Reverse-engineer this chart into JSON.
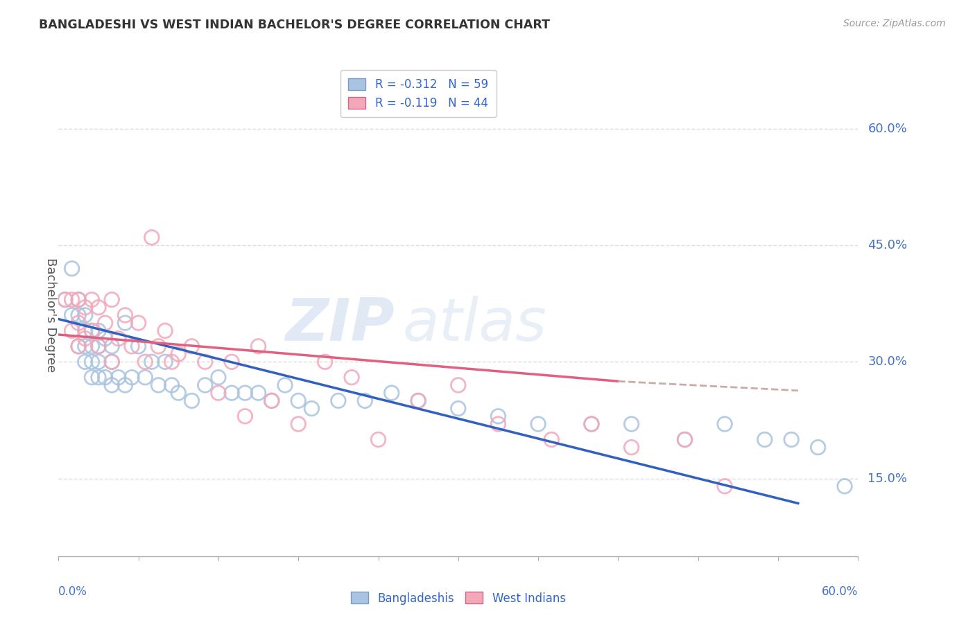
{
  "title": "BANGLADESHI VS WEST INDIAN BACHELOR'S DEGREE CORRELATION CHART",
  "source": "Source: ZipAtlas.com",
  "ylabel": "Bachelor's Degree",
  "yticks": [
    0.15,
    0.3,
    0.45,
    0.6
  ],
  "ytick_labels": [
    "15.0%",
    "30.0%",
    "45.0%",
    "60.0%"
  ],
  "xlim": [
    0.0,
    0.6
  ],
  "ylim": [
    0.05,
    0.67
  ],
  "legend_entries": [
    {
      "label": "R = -0.312   N = 59",
      "color": "#a8c4e0"
    },
    {
      "label": "R = -0.119   N = 44",
      "color": "#f4a7b9"
    }
  ],
  "blue_color": "#a8c4e0",
  "pink_color": "#f4a7b9",
  "blue_line_color": "#3060c0",
  "pink_line_color": "#e06080",
  "watermark_zip": "ZIP",
  "watermark_atlas": "atlas",
  "background_color": "#ffffff",
  "grid_color": "#dddddd",
  "blue_x": [
    0.005,
    0.01,
    0.01,
    0.015,
    0.015,
    0.015,
    0.02,
    0.02,
    0.02,
    0.02,
    0.025,
    0.025,
    0.025,
    0.025,
    0.03,
    0.03,
    0.03,
    0.03,
    0.035,
    0.035,
    0.04,
    0.04,
    0.04,
    0.045,
    0.05,
    0.05,
    0.055,
    0.06,
    0.065,
    0.07,
    0.075,
    0.08,
    0.085,
    0.09,
    0.1,
    0.11,
    0.12,
    0.13,
    0.14,
    0.15,
    0.16,
    0.17,
    0.18,
    0.19,
    0.21,
    0.23,
    0.25,
    0.27,
    0.3,
    0.33,
    0.36,
    0.4,
    0.43,
    0.47,
    0.5,
    0.53,
    0.55,
    0.57,
    0.59
  ],
  "blue_y": [
    0.38,
    0.36,
    0.42,
    0.36,
    0.32,
    0.38,
    0.34,
    0.3,
    0.32,
    0.36,
    0.3,
    0.34,
    0.28,
    0.32,
    0.3,
    0.34,
    0.32,
    0.28,
    0.33,
    0.28,
    0.3,
    0.27,
    0.32,
    0.28,
    0.35,
    0.27,
    0.28,
    0.32,
    0.28,
    0.3,
    0.27,
    0.3,
    0.27,
    0.26,
    0.25,
    0.27,
    0.28,
    0.26,
    0.26,
    0.26,
    0.25,
    0.27,
    0.25,
    0.24,
    0.25,
    0.25,
    0.26,
    0.25,
    0.24,
    0.23,
    0.22,
    0.22,
    0.22,
    0.2,
    0.22,
    0.2,
    0.2,
    0.19,
    0.14
  ],
  "pink_x": [
    0.005,
    0.01,
    0.01,
    0.015,
    0.015,
    0.015,
    0.02,
    0.02,
    0.025,
    0.025,
    0.03,
    0.03,
    0.035,
    0.04,
    0.04,
    0.045,
    0.05,
    0.055,
    0.06,
    0.065,
    0.07,
    0.075,
    0.08,
    0.085,
    0.09,
    0.1,
    0.11,
    0.12,
    0.13,
    0.14,
    0.15,
    0.16,
    0.18,
    0.2,
    0.22,
    0.24,
    0.27,
    0.3,
    0.33,
    0.37,
    0.4,
    0.43,
    0.47,
    0.5
  ],
  "pink_y": [
    0.38,
    0.38,
    0.34,
    0.38,
    0.35,
    0.32,
    0.37,
    0.33,
    0.38,
    0.34,
    0.37,
    0.32,
    0.35,
    0.38,
    0.3,
    0.33,
    0.36,
    0.32,
    0.35,
    0.3,
    0.46,
    0.32,
    0.34,
    0.3,
    0.31,
    0.32,
    0.3,
    0.26,
    0.3,
    0.23,
    0.32,
    0.25,
    0.22,
    0.3,
    0.28,
    0.2,
    0.25,
    0.27,
    0.22,
    0.2,
    0.22,
    0.19,
    0.2,
    0.14
  ]
}
